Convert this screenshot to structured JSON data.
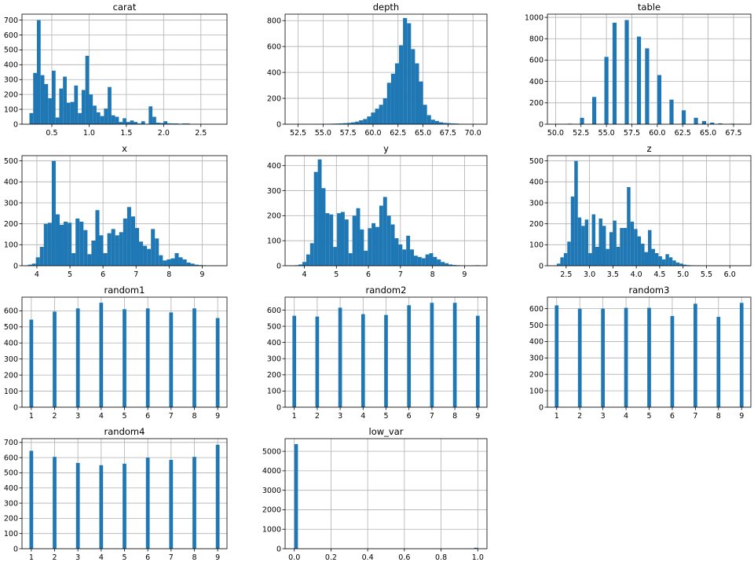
{
  "figure": {
    "bar_color": "#1f77b4",
    "grid_color": "#b0b0b0"
  },
  "chart_data": [
    {
      "type": "bar",
      "title": "carat",
      "xlim": [
        0.1,
        2.85
      ],
      "ylim": [
        0,
        740
      ],
      "xticks": [
        0.5,
        1.0,
        1.5,
        2.0,
        2.5
      ],
      "xtick_labels": [
        "0.5",
        "1.0",
        "1.5",
        "2.0",
        "2.5"
      ],
      "yticks": [
        0,
        100,
        200,
        300,
        400,
        500,
        600,
        700
      ],
      "ytick_labels": [
        "0",
        "100",
        "200",
        "300",
        "400",
        "500",
        "600",
        "700"
      ],
      "bin_start": 0.2,
      "bin_width": 0.05,
      "values": [
        75,
        345,
        700,
        330,
        270,
        175,
        360,
        45,
        240,
        320,
        145,
        150,
        260,
        75,
        230,
        460,
        200,
        125,
        80,
        55,
        105,
        250,
        60,
        50,
        15,
        40,
        15,
        25,
        15,
        5,
        20,
        3,
        120,
        50,
        10,
        8,
        20,
        6,
        5,
        5,
        3,
        5,
        5
      ]
    },
    {
      "type": "bar",
      "title": "depth",
      "xlim": [
        51.2,
        71.4
      ],
      "ylim": [
        0,
        850
      ],
      "xticks": [
        52.5,
        55.0,
        57.5,
        60.0,
        62.5,
        65.0,
        67.5,
        70.0
      ],
      "xtick_labels": [
        "52.5",
        "55.0",
        "57.5",
        "60.0",
        "62.5",
        "65.0",
        "67.5",
        "70.0"
      ],
      "yticks": [
        0,
        200,
        400,
        600,
        800
      ],
      "ytick_labels": [
        "0",
        "200",
        "400",
        "600",
        "800"
      ],
      "bin_start": 52.2,
      "bin_width": 0.4,
      "values": [
        2,
        0,
        0,
        0,
        0,
        1,
        2,
        2,
        3,
        4,
        5,
        6,
        8,
        10,
        14,
        20,
        30,
        40,
        60,
        90,
        120,
        150,
        200,
        320,
        390,
        470,
        610,
        820,
        780,
        580,
        470,
        330,
        150,
        70,
        35,
        25,
        15,
        10,
        8,
        6,
        5,
        3,
        3,
        2,
        2,
        2
      ]
    },
    {
      "type": "bar",
      "title": "table",
      "xlim": [
        49.2,
        69.2
      ],
      "ylim": [
        0,
        1030
      ],
      "xticks": [
        50.0,
        52.5,
        55.0,
        57.5,
        60.0,
        62.5,
        65.0,
        67.5
      ],
      "xtick_labels": [
        "50.0",
        "52.5",
        "55.0",
        "57.5",
        "60.0",
        "62.5",
        "65.0",
        "67.5"
      ],
      "yticks": [
        0,
        200,
        400,
        600,
        800,
        1000
      ],
      "ytick_labels": [
        "0",
        "200",
        "400",
        "600",
        "800",
        "1000"
      ],
      "bin_start": 50.0,
      "bin_width": 0.4,
      "values": [
        3,
        0,
        0,
        5,
        0,
        0,
        60,
        0,
        0,
        255,
        0,
        0,
        630,
        0,
        950,
        0,
        0,
        975,
        0,
        0,
        820,
        0,
        710,
        0,
        0,
        460,
        0,
        0,
        230,
        0,
        0,
        130,
        0,
        0,
        60,
        0,
        30,
        0,
        15,
        0,
        8,
        0,
        0,
        5,
        0,
        3,
        0
      ]
    },
    {
      "type": "bar",
      "title": "x",
      "xlim": [
        3.55,
        9.75
      ],
      "ylim": [
        0,
        525
      ],
      "xticks": [
        4,
        5,
        6,
        7,
        8,
        9
      ],
      "xtick_labels": [
        "4",
        "5",
        "6",
        "7",
        "8",
        "9"
      ],
      "yticks": [
        0,
        100,
        200,
        300,
        400,
        500
      ],
      "ytick_labels": [
        "0",
        "100",
        "200",
        "300",
        "400",
        "500"
      ],
      "bin_start": 3.73,
      "bin_width": 0.12,
      "values": [
        5,
        10,
        40,
        90,
        200,
        205,
        500,
        245,
        195,
        210,
        205,
        60,
        225,
        210,
        170,
        55,
        120,
        265,
        145,
        60,
        155,
        175,
        145,
        160,
        225,
        280,
        235,
        180,
        115,
        95,
        80,
        175,
        130,
        50,
        25,
        30,
        35,
        60,
        40,
        30,
        15,
        10,
        5,
        3,
        2,
        0,
        0,
        1,
        1
      ]
    },
    {
      "type": "bar",
      "title": "y",
      "xlim": [
        3.4,
        9.7
      ],
      "ylim": [
        0,
        440
      ],
      "xticks": [
        4,
        5,
        6,
        7,
        8,
        9
      ],
      "xtick_labels": [
        "4",
        "5",
        "6",
        "7",
        "8",
        "9"
      ],
      "yticks": [
        0,
        100,
        200,
        300,
        400
      ],
      "ytick_labels": [
        "0",
        "100",
        "200",
        "300",
        "400"
      ],
      "bin_start": 3.7,
      "bin_width": 0.12,
      "values": [
        2,
        5,
        15,
        45,
        90,
        375,
        425,
        310,
        210,
        205,
        75,
        210,
        215,
        185,
        50,
        200,
        230,
        145,
        60,
        150,
        170,
        155,
        240,
        275,
        200,
        165,
        110,
        85,
        65,
        120,
        65,
        40,
        35,
        30,
        45,
        50,
        35,
        25,
        15,
        10,
        5,
        3,
        2,
        1,
        0,
        0,
        1,
        2
      ]
    },
    {
      "type": "bar",
      "title": "z",
      "xlim": [
        2.1,
        6.45
      ],
      "ylim": [
        0,
        525
      ],
      "xticks": [
        2.5,
        3.0,
        3.5,
        4.0,
        4.5,
        5.0,
        5.5,
        6.0
      ],
      "xtick_labels": [
        "2.5",
        "3.0",
        "3.5",
        "4.0",
        "4.5",
        "5.0",
        "5.5",
        "6.0"
      ],
      "yticks": [
        0,
        100,
        200,
        300,
        400,
        500
      ],
      "ytick_labels": [
        "0",
        "100",
        "200",
        "300",
        "400",
        "500"
      ],
      "bin_start": 2.3,
      "bin_width": 0.075,
      "values": [
        10,
        40,
        60,
        115,
        330,
        500,
        230,
        190,
        220,
        60,
        245,
        90,
        225,
        190,
        80,
        160,
        215,
        90,
        180,
        180,
        375,
        210,
        175,
        140,
        105,
        65,
        170,
        80,
        60,
        45,
        30,
        55,
        40,
        25,
        15,
        10,
        5,
        3,
        2,
        1,
        1,
        0,
        0,
        0,
        0,
        0,
        1,
        0,
        0,
        0,
        0
      ]
    },
    {
      "type": "bar",
      "title": "random1",
      "xlim": [
        0.6,
        9.4
      ],
      "ylim": [
        0,
        685
      ],
      "xticks": [
        1,
        2,
        3,
        4,
        5,
        6,
        7,
        8,
        9
      ],
      "xtick_labels": [
        "1",
        "2",
        "3",
        "4",
        "5",
        "6",
        "7",
        "8",
        "9"
      ],
      "yticks": [
        0,
        100,
        200,
        300,
        400,
        500,
        600
      ],
      "ytick_labels": [
        "0",
        "100",
        "200",
        "300",
        "400",
        "500",
        "600"
      ],
      "bar_positions": [
        1,
        2,
        3,
        4,
        5,
        6,
        7,
        8,
        9
      ],
      "bar_width": 0.16,
      "values": [
        545,
        595,
        615,
        650,
        610,
        615,
        590,
        615,
        555
      ]
    },
    {
      "type": "bar",
      "title": "random2",
      "xlim": [
        0.6,
        9.4
      ],
      "ylim": [
        0,
        680
      ],
      "xticks": [
        1,
        2,
        3,
        4,
        5,
        6,
        7,
        8,
        9
      ],
      "xtick_labels": [
        "1",
        "2",
        "3",
        "4",
        "5",
        "6",
        "7",
        "8",
        "9"
      ],
      "yticks": [
        0,
        100,
        200,
        300,
        400,
        500,
        600
      ],
      "ytick_labels": [
        "0",
        "100",
        "200",
        "300",
        "400",
        "500",
        "600"
      ],
      "bar_positions": [
        1,
        2,
        3,
        4,
        5,
        6,
        7,
        8,
        9
      ],
      "bar_width": 0.16,
      "values": [
        565,
        560,
        615,
        575,
        570,
        630,
        645,
        645,
        565
      ]
    },
    {
      "type": "bar",
      "title": "random3",
      "xlim": [
        0.6,
        9.4
      ],
      "ylim": [
        0,
        670
      ],
      "xticks": [
        1,
        2,
        3,
        4,
        5,
        6,
        7,
        8,
        9
      ],
      "xtick_labels": [
        "1",
        "2",
        "3",
        "4",
        "5",
        "6",
        "7",
        "8",
        "9"
      ],
      "yticks": [
        0,
        100,
        200,
        300,
        400,
        500,
        600
      ],
      "ytick_labels": [
        "0",
        "100",
        "200",
        "300",
        "400",
        "500",
        "600"
      ],
      "bar_positions": [
        1,
        2,
        3,
        4,
        5,
        6,
        7,
        8,
        9
      ],
      "bar_width": 0.16,
      "values": [
        620,
        600,
        600,
        605,
        605,
        555,
        630,
        550,
        635
      ]
    },
    {
      "type": "bar",
      "title": "random4",
      "xlim": [
        0.6,
        9.4
      ],
      "ylim": [
        0,
        725
      ],
      "xticks": [
        1,
        2,
        3,
        4,
        5,
        6,
        7,
        8,
        9
      ],
      "xtick_labels": [
        "1",
        "2",
        "3",
        "4",
        "5",
        "6",
        "7",
        "8",
        "9"
      ],
      "yticks": [
        0,
        100,
        200,
        300,
        400,
        500,
        600,
        700
      ],
      "ytick_labels": [
        "0",
        "100",
        "200",
        "300",
        "400",
        "500",
        "600",
        "700"
      ],
      "bar_positions": [
        1,
        2,
        3,
        4,
        5,
        6,
        7,
        8,
        9
      ],
      "bar_width": 0.16,
      "values": [
        645,
        605,
        565,
        550,
        560,
        600,
        585,
        605,
        685
      ]
    },
    {
      "type": "bar",
      "title": "low_var",
      "xlim": [
        -0.05,
        1.05
      ],
      "ylim": [
        0,
        5650
      ],
      "xticks": [
        0.0,
        0.2,
        0.4,
        0.6,
        0.8,
        1.0
      ],
      "xtick_labels": [
        "0.0",
        "0.2",
        "0.4",
        "0.6",
        "0.8",
        "1.0"
      ],
      "yticks": [
        0,
        1000,
        2000,
        3000,
        4000,
        5000
      ],
      "ytick_labels": [
        "0",
        "1000",
        "2000",
        "3000",
        "4000",
        "5000"
      ],
      "bar_positions": [
        0.01,
        0.99
      ],
      "bar_width": 0.02,
      "values": [
        5370,
        50
      ]
    }
  ]
}
